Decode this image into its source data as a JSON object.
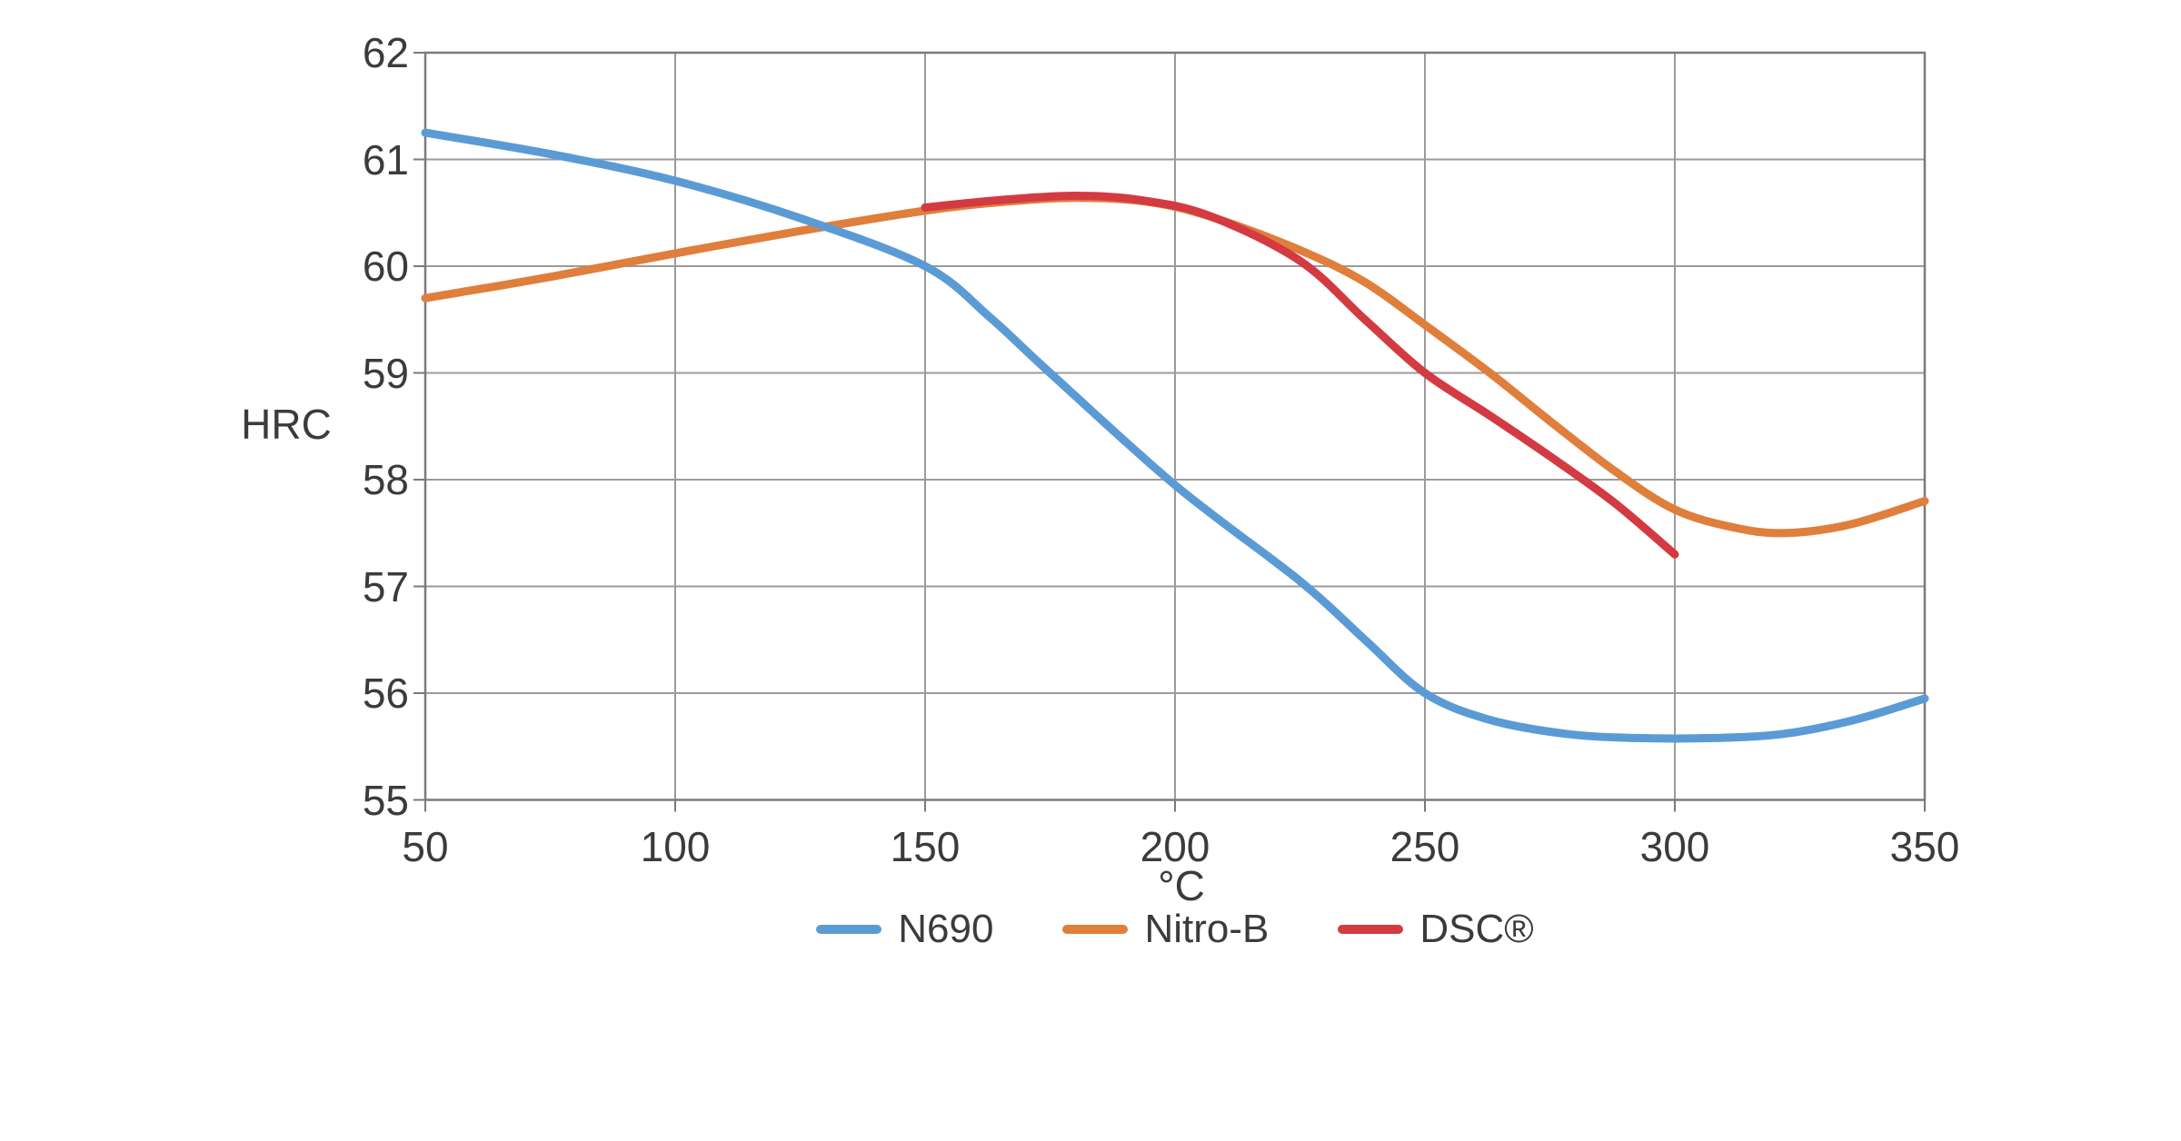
{
  "chart_data": {
    "type": "line",
    "title": "",
    "xlabel": "°C",
    "ylabel": "HRC",
    "xlim": [
      50,
      350
    ],
    "ylim": [
      55,
      62
    ],
    "x_ticks": [
      50,
      100,
      150,
      200,
      250,
      300,
      350
    ],
    "y_ticks": [
      62,
      61,
      60,
      59,
      58,
      57,
      56,
      55
    ],
    "grid": true,
    "legend_position": "bottom",
    "series": [
      {
        "name": "N690",
        "color": "#5B9BD5",
        "points": [
          [
            50,
            61.25
          ],
          [
            75,
            61.05
          ],
          [
            100,
            60.8
          ],
          [
            125,
            60.45
          ],
          [
            150,
            60.0
          ],
          [
            163,
            59.52
          ],
          [
            175,
            59.0
          ],
          [
            200,
            57.95
          ],
          [
            225,
            57.05
          ],
          [
            238,
            56.5
          ],
          [
            250,
            56.0
          ],
          [
            263,
            55.75
          ],
          [
            278,
            55.62
          ],
          [
            292,
            55.58
          ],
          [
            308,
            55.58
          ],
          [
            322,
            55.62
          ],
          [
            336,
            55.75
          ],
          [
            350,
            55.95
          ]
        ]
      },
      {
        "name": "Nitro-B",
        "color": "#E07E3C",
        "points": [
          [
            50,
            59.7
          ],
          [
            75,
            59.9
          ],
          [
            100,
            60.12
          ],
          [
            125,
            60.33
          ],
          [
            150,
            60.52
          ],
          [
            165,
            60.6
          ],
          [
            180,
            60.64
          ],
          [
            195,
            60.6
          ],
          [
            208,
            60.45
          ],
          [
            225,
            60.15
          ],
          [
            238,
            59.85
          ],
          [
            250,
            59.45
          ],
          [
            263,
            59.0
          ],
          [
            275,
            58.55
          ],
          [
            288,
            58.08
          ],
          [
            300,
            57.72
          ],
          [
            312,
            57.55
          ],
          [
            322,
            57.5
          ],
          [
            335,
            57.58
          ],
          [
            350,
            57.8
          ]
        ]
      },
      {
        "name": "DSC®",
        "color": "#D43A41",
        "points": [
          [
            150,
            60.55
          ],
          [
            165,
            60.62
          ],
          [
            180,
            60.66
          ],
          [
            193,
            60.62
          ],
          [
            207,
            60.47
          ],
          [
            225,
            60.05
          ],
          [
            238,
            59.5
          ],
          [
            250,
            59.0
          ],
          [
            263,
            58.6
          ],
          [
            275,
            58.22
          ],
          [
            288,
            57.78
          ],
          [
            300,
            57.3
          ]
        ]
      }
    ]
  },
  "colors": {
    "background": "#FFFFFF",
    "grid": "#9B9B9B",
    "axis_border": "#7A7A7A",
    "text": "#3B3B3B"
  }
}
